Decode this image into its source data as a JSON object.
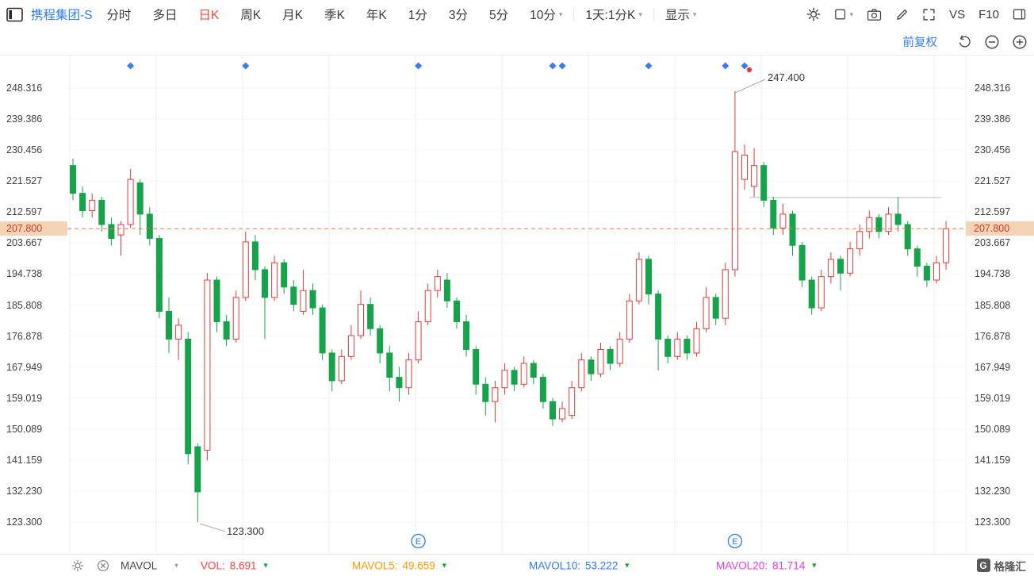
{
  "header": {
    "stock_name": "携程集团-S",
    "menu_items": [
      "分时",
      "多日",
      "日K",
      "周K",
      "月K",
      "季K",
      "年K",
      "1分",
      "3分",
      "5分",
      "10分"
    ],
    "active_index": 2,
    "dropdown_index": 10,
    "interval_label": "1天:1分K",
    "display_label": "显示",
    "vs_label": "VS",
    "f10_label": "F10"
  },
  "subheader": {
    "adjust_mode": "前复权"
  },
  "axis": {
    "ticks": [
      "248.316",
      "239.386",
      "230.456",
      "221.527",
      "212.597",
      "203.667",
      "194.738",
      "185.808",
      "176.878",
      "167.949",
      "159.019",
      "150.089",
      "141.159",
      "132.230",
      "123.300"
    ],
    "current_price": "207.800"
  },
  "annotations": {
    "high": "247.400",
    "low": "123.300"
  },
  "chart_data": {
    "type": "candlestick",
    "symbol": "携程集团-S",
    "period": "日K",
    "price_max": 248.316,
    "price_min": 123.3,
    "current_price": 207.8,
    "high_label": 247.4,
    "low_label": 123.3,
    "high_index": 69,
    "low_index": 13,
    "up_color": "#e23b3b",
    "down_color": "#16a34a",
    "grid_on": true,
    "candles": [
      [
        226,
        228,
        216,
        218
      ],
      [
        218,
        220,
        211,
        213
      ],
      [
        213,
        218,
        211,
        216
      ],
      [
        216,
        217,
        207,
        209
      ],
      [
        209,
        211,
        203,
        205
      ],
      [
        206,
        210,
        200,
        209
      ],
      [
        209,
        225,
        208,
        222
      ],
      [
        221,
        222,
        206,
        212
      ],
      [
        212,
        214,
        203,
        205
      ],
      [
        205,
        206,
        182,
        184
      ],
      [
        184,
        188,
        172,
        176
      ],
      [
        176,
        182,
        170,
        180
      ],
      [
        176,
        178,
        140,
        143
      ],
      [
        145,
        146,
        123.3,
        132
      ],
      [
        144,
        195,
        141,
        193
      ],
      [
        193,
        194,
        178,
        181
      ],
      [
        181,
        183,
        174,
        176
      ],
      [
        176,
        190,
        175,
        188
      ],
      [
        188,
        207,
        187,
        204
      ],
      [
        204,
        206,
        193,
        196
      ],
      [
        196,
        197,
        176,
        188
      ],
      [
        188,
        200,
        187,
        198
      ],
      [
        198,
        199,
        189,
        191
      ],
      [
        191,
        193,
        184,
        186
      ],
      [
        184,
        196,
        183,
        190
      ],
      [
        190,
        192,
        183,
        185
      ],
      [
        185,
        186,
        170,
        172
      ],
      [
        172,
        173,
        161,
        164
      ],
      [
        164,
        173,
        163,
        171
      ],
      [
        171,
        180,
        170,
        177
      ],
      [
        177,
        190,
        176,
        186
      ],
      [
        186,
        188,
        177,
        179
      ],
      [
        179,
        180,
        169,
        172
      ],
      [
        172,
        174,
        161,
        165
      ],
      [
        165,
        168,
        158,
        162
      ],
      [
        162,
        172,
        160,
        170
      ],
      [
        170,
        184,
        169,
        181
      ],
      [
        181,
        192,
        180,
        190
      ],
      [
        190,
        196,
        188,
        194
      ],
      [
        193,
        195,
        185,
        187
      ],
      [
        187,
        188,
        179,
        181
      ],
      [
        181,
        183,
        171,
        173
      ],
      [
        173,
        174,
        160,
        163
      ],
      [
        163,
        165,
        154,
        158
      ],
      [
        158,
        164,
        152,
        162
      ],
      [
        162,
        169,
        160,
        167
      ],
      [
        167,
        168,
        161,
        163
      ],
      [
        163,
        171,
        162,
        169
      ],
      [
        169,
        170,
        163,
        165
      ],
      [
        165,
        166,
        156,
        158
      ],
      [
        158,
        159,
        151,
        153
      ],
      [
        153,
        158,
        152,
        156
      ],
      [
        154,
        164,
        153,
        162
      ],
      [
        162,
        172,
        161,
        170
      ],
      [
        170,
        171,
        164,
        166
      ],
      [
        166,
        175,
        165,
        173
      ],
      [
        173,
        174,
        167,
        169
      ],
      [
        169,
        178,
        168,
        176
      ],
      [
        176,
        189,
        175,
        187
      ],
      [
        187,
        201,
        186,
        199
      ],
      [
        199,
        200,
        186,
        189
      ],
      [
        189,
        190,
        167,
        176
      ],
      [
        176,
        177,
        169,
        171
      ],
      [
        171,
        178,
        170,
        176
      ],
      [
        176,
        177,
        170,
        172
      ],
      [
        172,
        181,
        171,
        179
      ],
      [
        179,
        191,
        178,
        188
      ],
      [
        188,
        189,
        180,
        182
      ],
      [
        182,
        198,
        180,
        196
      ],
      [
        196,
        247.4,
        194,
        230
      ],
      [
        222,
        232,
        219,
        229
      ],
      [
        220,
        231,
        217,
        226
      ],
      [
        226,
        227,
        214,
        216
      ],
      [
        216,
        217,
        206,
        208
      ],
      [
        208,
        215,
        206,
        212
      ],
      [
        212,
        213,
        200,
        203
      ],
      [
        203,
        204,
        191,
        193
      ],
      [
        193,
        194,
        183,
        185
      ],
      [
        185,
        196,
        184,
        194
      ],
      [
        194,
        201,
        192,
        199
      ],
      [
        199,
        200,
        190,
        195
      ],
      [
        195,
        204,
        194,
        202
      ],
      [
        202,
        209,
        200,
        207
      ],
      [
        207,
        213,
        205,
        211
      ],
      [
        211,
        212,
        205,
        207
      ],
      [
        207,
        214,
        206,
        212
      ],
      [
        212,
        217,
        207,
        209
      ],
      [
        209,
        210,
        200,
        202
      ],
      [
        202,
        203,
        194,
        197
      ],
      [
        197,
        198,
        191,
        193
      ],
      [
        193,
        200,
        192,
        198
      ],
      [
        198,
        210,
        196,
        207.8
      ]
    ],
    "event_diamond_indices": [
      6,
      18,
      36,
      50,
      51,
      60,
      68,
      70
    ],
    "red_dot": {
      "index": 70,
      "y": 18
    },
    "e_marker_indices": [
      36,
      69
    ],
    "e_marker_glyph": "E",
    "trendline": {
      "price": 216.8,
      "from_index": 71,
      "to_index": 90
    }
  },
  "footer": {
    "indicator_name": "MAVOL",
    "items": [
      {
        "label": "VOL:",
        "value": "8.691",
        "color": "#ff4242"
      },
      {
        "label": "MAVOL5:",
        "value": "49.659",
        "color": "#ff9800"
      },
      {
        "label": "MAVOL10:",
        "value": "53.222",
        "color": "#2b7bf3"
      },
      {
        "label": "MAVOL20:",
        "value": "81.714",
        "color": "#e23ce2"
      }
    ],
    "logo_glyph": "G",
    "logo_text": "格隆汇"
  }
}
